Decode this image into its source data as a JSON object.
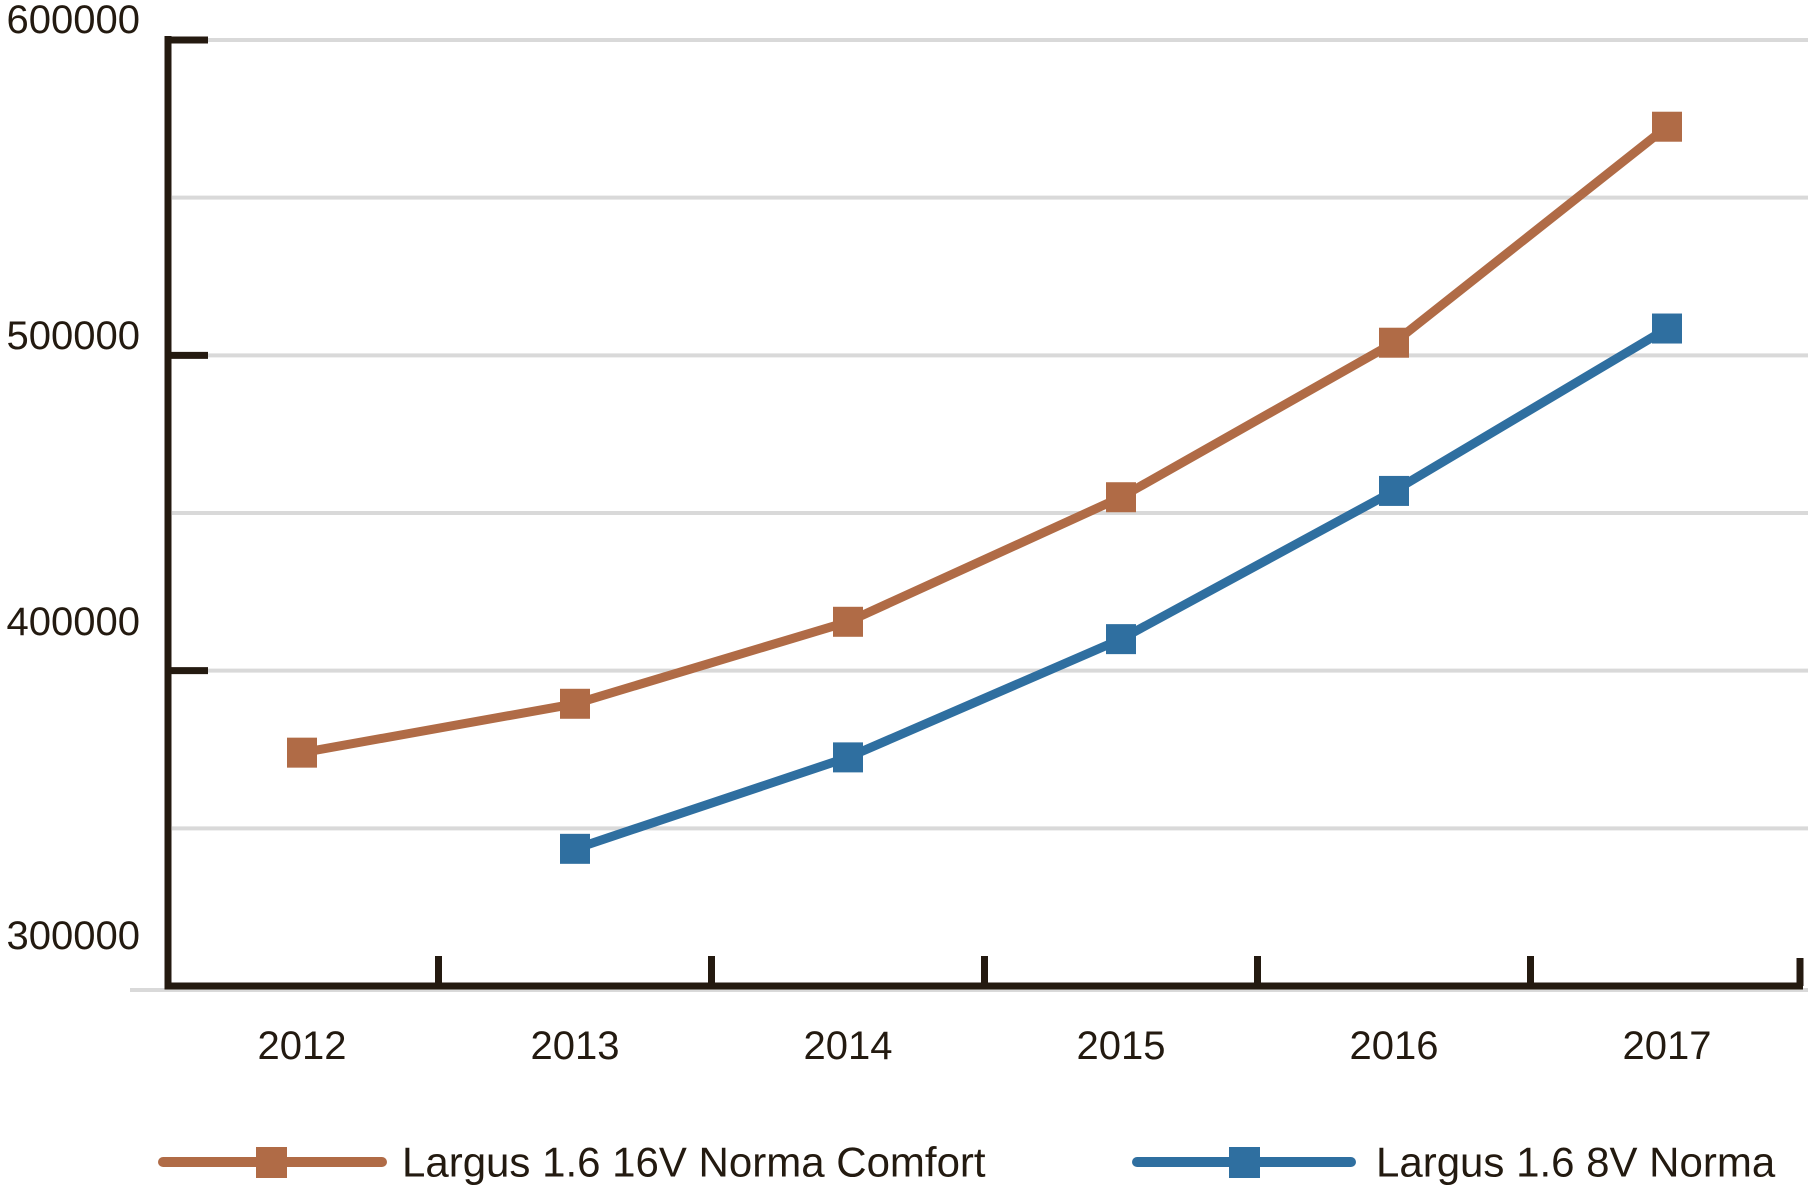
{
  "chart_data": {
    "type": "line",
    "x": [
      "2012",
      "2013",
      "2014",
      "2015",
      "2016",
      "2017"
    ],
    "series": [
      {
        "name": "Largus 1.6 16V Norma Comfort",
        "color": "#b06b46",
        "marker": "square",
        "values": [
          374000,
          389500,
          415500,
          455000,
          504000,
          572500
        ]
      },
      {
        "name": "Largus 1.6 8V Norma",
        "color": "#2f6fa0",
        "marker": "square",
        "values": [
          null,
          343500,
          372500,
          410000,
          457000,
          508500
        ]
      }
    ],
    "title": "",
    "xlabel": "",
    "ylabel": "",
    "ylim": [
      300000,
      600000
    ],
    "y_major_tick_step": 100000,
    "y_grid_step": 50000,
    "y_tick_labels": [
      "300000",
      "400000",
      "500000",
      "600000"
    ],
    "grid": "horizontal",
    "legend_position": "bottom"
  },
  "colors": {
    "axis": "#241a10",
    "text": "#231a10",
    "gridline": "#d9d9d9",
    "background": "#ffffff",
    "series_brown": "#b06b46",
    "series_blue": "#2f6fa0"
  }
}
